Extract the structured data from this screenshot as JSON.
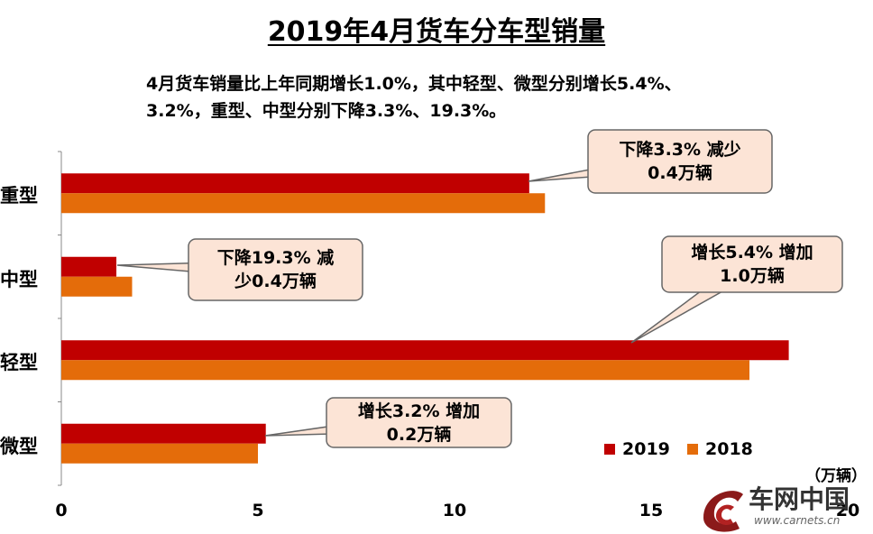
{
  "chart_data": {
    "type": "bar",
    "orientation": "horizontal",
    "title": "2019年4月货车分车型销量",
    "subtitle": [
      "4月货车销量比上年同期增长1.0%，其中轻型、微型分别增长5.4%、",
      "3.2%，重型、中型分别下降3.3%、19.3%。"
    ],
    "categories": [
      "重型",
      "中型",
      "轻型",
      "微型"
    ],
    "series": [
      {
        "name": "2019",
        "color": "#C00000",
        "values": [
          11.9,
          1.4,
          18.5,
          5.2
        ]
      },
      {
        "name": "2018",
        "color": "#E46C0A",
        "values": [
          12.3,
          1.8,
          17.5,
          5.0
        ]
      }
    ],
    "xlim": [
      0,
      20
    ],
    "xticks": [
      "0",
      "5",
      "10",
      "15",
      "20"
    ],
    "unit": "（万辆）",
    "legend": "bottom-right",
    "callouts": [
      {
        "category": "重型",
        "lines": [
          "下降3.3% 减少",
          "0.4万辆"
        ]
      },
      {
        "category": "中型",
        "lines": [
          "下降19.3% 减",
          "少0.4万辆"
        ]
      },
      {
        "category": "轻型",
        "lines": [
          "增长5.4% 增加",
          "1.0万辆"
        ]
      },
      {
        "category": "微型",
        "lines": [
          "增长3.2% 增加",
          "0.2万辆"
        ]
      }
    ]
  },
  "watermark": {
    "brand": "车网中国",
    "url": "www.carnets.cn"
  }
}
